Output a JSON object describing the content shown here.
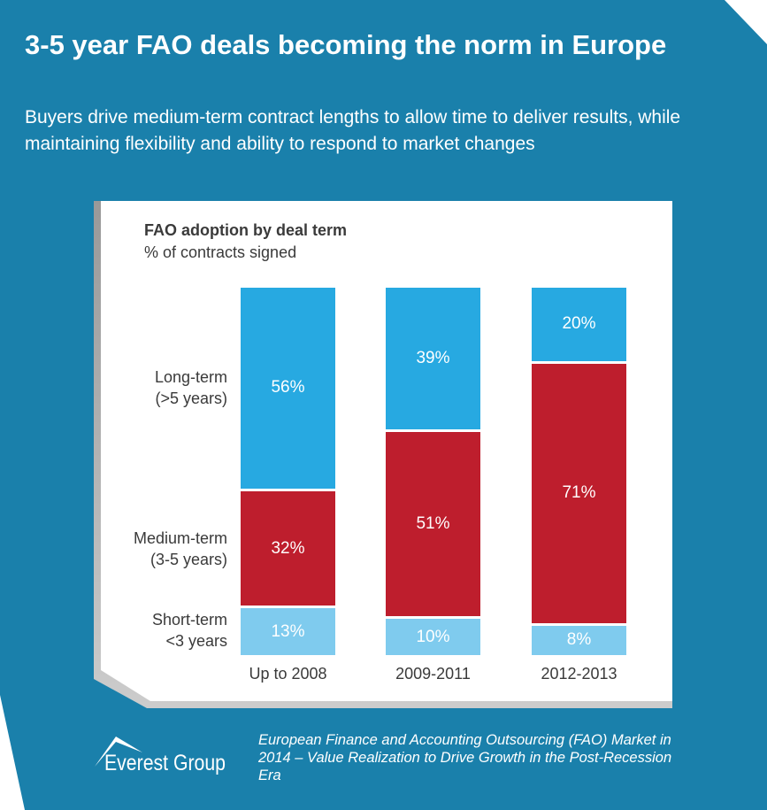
{
  "header": {
    "title": "3-5 year FAO deals becoming the norm in Europe",
    "subtitle": "Buyers drive medium-term contract lengths to allow time to deliver results, while maintaining flexibility and ability to respond to market changes"
  },
  "chart_data": {
    "type": "bar",
    "stacked": true,
    "title": "FAO adoption by deal term",
    "ylabel": "% of contracts signed",
    "categories": [
      "Up to 2008",
      "2009-2011",
      "2012-2013"
    ],
    "series": [
      {
        "name": "Short-term <3 years",
        "values": [
          13,
          10,
          8
        ],
        "color": "#7fcbee",
        "labels": [
          "13%",
          "10%",
          "8%"
        ]
      },
      {
        "name": "Medium-term (3-5 years)",
        "values": [
          32,
          51,
          71
        ],
        "color": "#be1e2d",
        "labels": [
          "32%",
          "51%",
          "71%"
        ]
      },
      {
        "name": "Long-term (>5 years)",
        "values": [
          56,
          39,
          20
        ],
        "color": "#27a9e1",
        "labels": [
          "56%",
          "39%",
          "20%"
        ]
      }
    ],
    "row_labels": [
      [
        "Short-term",
        "<3 years"
      ],
      [
        "Medium-term",
        "(3-5 years)"
      ],
      [
        "Long-term",
        "(>5 years)"
      ]
    ]
  },
  "footer": {
    "logo": "Everest Group",
    "source": "European Finance and Accounting Outsourcing (FAO) Market in 2014 – Value Realization to Drive Growth in the Post-Recession Era"
  },
  "colors": {
    "background": "#1a80ab"
  }
}
